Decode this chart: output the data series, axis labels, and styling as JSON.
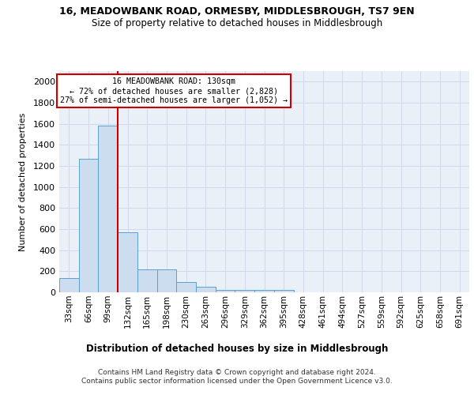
{
  "title": "16, MEADOWBANK ROAD, ORMESBY, MIDDLESBROUGH, TS7 9EN",
  "subtitle": "Size of property relative to detached houses in Middlesbrough",
  "xlabel": "Distribution of detached houses by size in Middlesbrough",
  "ylabel": "Number of detached properties",
  "categories": [
    "33sqm",
    "66sqm",
    "99sqm",
    "132sqm",
    "165sqm",
    "198sqm",
    "230sqm",
    "263sqm",
    "296sqm",
    "329sqm",
    "362sqm",
    "395sqm",
    "428sqm",
    "461sqm",
    "494sqm",
    "527sqm",
    "559sqm",
    "592sqm",
    "625sqm",
    "658sqm",
    "691sqm"
  ],
  "values": [
    135,
    1270,
    1580,
    570,
    215,
    215,
    100,
    50,
    25,
    20,
    20,
    20,
    0,
    0,
    0,
    0,
    0,
    0,
    0,
    0,
    0
  ],
  "bar_color": "#cdddf0",
  "bar_edge_color": "#5a9fd4",
  "grid_color": "#d0daea",
  "bg_color": "#eaf0f8",
  "red_line_color": "#cc0000",
  "red_line_bin": 2,
  "annotation_line1": "16 MEADOWBANK ROAD: 130sqm",
  "annotation_line2": "← 72% of detached houses are smaller (2,828)",
  "annotation_line3": "27% of semi-detached houses are larger (1,052) →",
  "annotation_box_color": "#ffffff",
  "annotation_box_edge_color": "#cc0000",
  "footer": "Contains HM Land Registry data © Crown copyright and database right 2024.\nContains public sector information licensed under the Open Government Licence v3.0.",
  "ylim": [
    0,
    2100
  ],
  "yticks": [
    0,
    200,
    400,
    600,
    800,
    1000,
    1200,
    1400,
    1600,
    1800,
    2000
  ]
}
